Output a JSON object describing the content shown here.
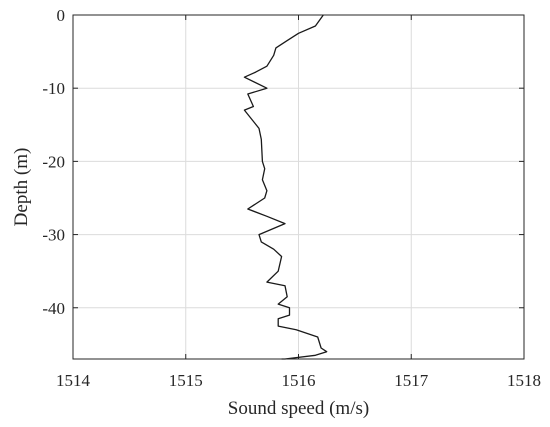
{
  "chart_data": {
    "type": "line",
    "xlabel": "Sound speed (m/s)",
    "ylabel": "Depth (m)",
    "xlim": [
      1514,
      1518
    ],
    "ylim": [
      -47,
      0
    ],
    "xticks": [
      1514,
      1515,
      1516,
      1517,
      1518
    ],
    "yticks": [
      0,
      -10,
      -20,
      -30,
      -40
    ],
    "x_tick_labels": [
      "1514",
      "1515",
      "1516",
      "1517",
      "1518"
    ],
    "y_tick_labels": [
      "0",
      "-10",
      "-20",
      "-30",
      "-40"
    ],
    "grid": true,
    "series": [
      {
        "x": [
          1516.22,
          1516.15,
          1516.0,
          1515.9,
          1515.8,
          1515.78,
          1515.72,
          1515.62,
          1515.52,
          1515.72,
          1515.55,
          1515.6,
          1515.52,
          1515.65,
          1515.67,
          1515.68,
          1515.7,
          1515.68,
          1515.72,
          1515.7,
          1515.55,
          1515.72,
          1515.88,
          1515.65,
          1515.67,
          1515.78,
          1515.85,
          1515.82,
          1515.72,
          1515.88,
          1515.9,
          1515.82,
          1515.92,
          1515.92,
          1515.82,
          1515.82,
          1515.98,
          1516.17,
          1516.2,
          1516.25,
          1516.15,
          1515.88,
          1515.85
        ],
        "y": [
          0,
          -1.5,
          -2.5,
          -3.5,
          -4.5,
          -5.5,
          -7,
          -7.8,
          -8.5,
          -10,
          -10.8,
          -12.5,
          -13,
          -15.5,
          -17,
          -20,
          -21,
          -22.5,
          -24,
          -25,
          -26.5,
          -27.5,
          -28.5,
          -30,
          -31,
          -32,
          -33,
          -35,
          -36.5,
          -37,
          -38.5,
          -39.5,
          -40,
          -41,
          -41.5,
          -42.5,
          -43,
          -44,
          -45.5,
          -46,
          -46.5,
          -47,
          -47
        ]
      }
    ]
  }
}
